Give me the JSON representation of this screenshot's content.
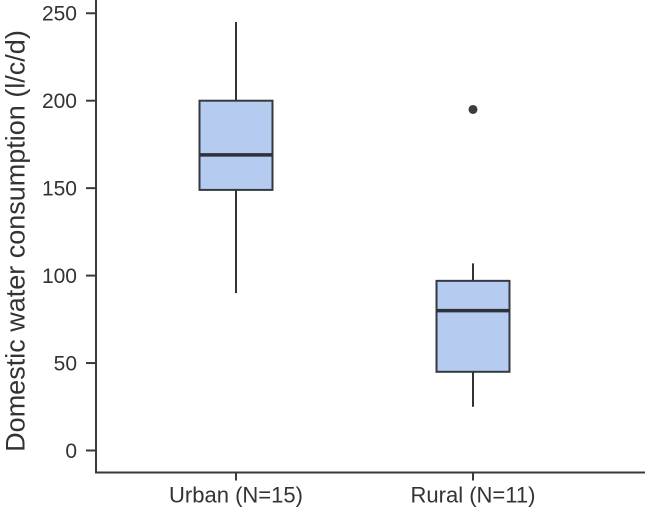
{
  "chart_data": {
    "type": "boxplot",
    "title": "",
    "xlabel": "",
    "ylabel": "Domestic water consumption (l/c/d)",
    "ylim": [
      0,
      250
    ],
    "yticks": [
      0,
      50,
      100,
      150,
      200,
      250
    ],
    "categories": [
      "Urban (N=15)",
      "Rural (N=11)"
    ],
    "series": [
      {
        "category": "Urban (N=15)",
        "n": 15,
        "whisker_low": 90,
        "q1": 149,
        "median": 169,
        "q3": 200,
        "whisker_high": 245,
        "outliers": []
      },
      {
        "category": "Rural (N=11)",
        "n": 11,
        "whisker_low": 25,
        "q1": 45,
        "median": 80,
        "q3": 97,
        "whisker_high": 107,
        "outliers": [
          195
        ]
      }
    ],
    "grid": false,
    "legend": null,
    "colors": {
      "box_fill": "#b5cbef",
      "box_border": "#343a42",
      "median_line": "#2c313a",
      "whisker": "#333333",
      "axis": "#3a3a3a",
      "text": "#333333",
      "outlier": "#3d3d3d",
      "background": "#ffffff"
    }
  }
}
